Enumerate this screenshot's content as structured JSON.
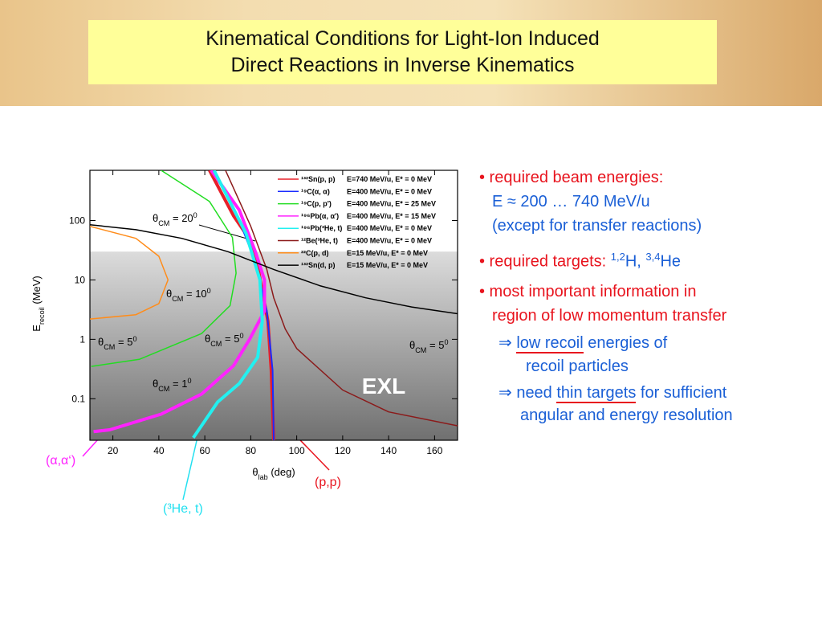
{
  "slide": {
    "title": [
      "Kinematical Conditions for Light-Ion Induced",
      "Direct Reactions in Inverse Kinematics"
    ],
    "notes": [
      [
        {
          "text": "• required beam energies:",
          "color": "#e8141e"
        }
      ],
      [
        {
          "text": "E ≈ 200 … 740 MeV/u",
          "color": "#1a5fd6"
        }
      ],
      [
        {
          "text": "(except for transfer reactions)",
          "color": "#1a5fd6"
        }
      ],
      [
        {
          "text": "• required targets: ",
          "color": "#e8141e"
        },
        {
          "text": "1,2",
          "color": "#1a5fd6",
          "sup": true
        },
        {
          "text": "H, ",
          "color": "#1a5fd6"
        },
        {
          "text": "3,4",
          "color": "#1a5fd6",
          "sup": true
        },
        {
          "text": "He",
          "color": "#1a5fd6"
        }
      ],
      [
        {
          "text": "• most important information in",
          "color": "#e8141e"
        }
      ],
      [
        {
          "text": "region of low momentum transfer",
          "color": "#e8141e"
        }
      ],
      [
        {
          "text": "⇒ ",
          "color": "#1a5fd6"
        },
        {
          "text": "low recoil",
          "color": "#1a5fd6",
          "underline": true
        },
        {
          "text": " energies of",
          "color": "#1a5fd6"
        }
      ],
      [
        {
          "text": "recoil particles",
          "color": "#1a5fd6"
        }
      ],
      [
        {
          "text": "⇒ need ",
          "color": "#1a5fd6"
        },
        {
          "text": "thin targets",
          "color": "#1a5fd6",
          "underline": true
        },
        {
          "text": " for sufficient",
          "color": "#1a5fd6"
        }
      ],
      [
        {
          "text": "angular and energy resolution",
          "color": "#1a5fd6"
        }
      ]
    ],
    "callouts": [
      {
        "text": "(α,α‘)",
        "color": "#ff22ff"
      },
      {
        "text": "(³He, t)",
        "color": "#22e0f0"
      },
      {
        "text": "(p,p)",
        "color": "#e8141e"
      }
    ]
  },
  "chart_data": {
    "type": "line",
    "log_y": true,
    "xlabel": {
      "text": "θ",
      "sub": "lab",
      "rest": " (deg)"
    },
    "ylabel": {
      "text": "E",
      "sub": "recoil",
      "rest": " (MeV)"
    },
    "xlim": [
      10,
      170
    ],
    "xticks": [
      20,
      40,
      60,
      80,
      100,
      120,
      140,
      160
    ],
    "ylim": [
      0.02,
      700
    ],
    "yticks": [
      0.1,
      1,
      10,
      100
    ],
    "region_label": "EXL",
    "region_from": 30,
    "annotations": [
      {
        "pre": "θ",
        "sub": "CM",
        "mid": " = 20",
        "sup": "0"
      },
      {
        "pre": "θ",
        "sub": "CM",
        "mid": " = 10",
        "sup": "0"
      },
      {
        "pre": "θ",
        "sub": "CM",
        "mid": " = 5",
        "sup": "0"
      },
      {
        "pre": "θ",
        "sub": "CM",
        "mid": " = 5",
        "sup": "0"
      },
      {
        "pre": "θ",
        "sub": "CM",
        "mid": " = 1",
        "sup": "0"
      },
      {
        "pre": "θ",
        "sub": "CM",
        "mid": " = 5",
        "sup": "0"
      }
    ],
    "series": [
      {
        "name": "¹³²Sn(p, p)",
        "conditions": "E=740 MeV/u, E* = 0 MeV",
        "color": "#e8202a",
        "line_width": 4,
        "x": [
          62,
          72.5,
          77.7,
          83,
          87.5,
          88.9,
          90
        ],
        "values": [
          700,
          120,
          61,
          17,
          2,
          0.3,
          0.02
        ]
      },
      {
        "name": "¹⁹C(α, α)",
        "conditions": "E=400 MeV/u, E* = 0 MeV",
        "color": "#1a2cff",
        "line_width": 2,
        "x": [
          64,
          75,
          82,
          87,
          89.5,
          90
        ],
        "values": [
          700,
          100,
          20,
          3,
          0.3,
          0.02
        ]
      },
      {
        "name": "¹⁹C(p, p')",
        "conditions": "E=400 MeV/u, E* = 25 MeV",
        "color": "#22dd22",
        "line_width": 1.5,
        "x": [
          41,
          62,
          72,
          73.6,
          71,
          58.6,
          31.5,
          10.6
        ],
        "values": [
          700,
          210,
          52,
          13,
          3.7,
          1.25,
          0.46,
          0.35
        ]
      },
      {
        "name": "¹⁹⁶Pb(α, α')",
        "conditions": "E=400 MeV/u, E* = 15 MeV",
        "color": "#ff22ff",
        "line_width": 4,
        "x": [
          62.8,
          75,
          82,
          86,
          86,
          79.5,
          72.5,
          58.6,
          41,
          18.6,
          11.6
        ],
        "values": [
          700,
          150,
          30,
          10,
          3,
          1,
          0.36,
          0.12,
          0.055,
          0.03,
          0.028
        ]
      },
      {
        "name": "¹⁹⁶Pb(³He, t)",
        "conditions": "E=400 MeV/u, E* = 0 MeV",
        "color": "#22f0f0",
        "line_width": 4,
        "x": [
          64,
          78,
          84,
          85,
          83,
          75,
          65.6,
          55
        ],
        "values": [
          700,
          60,
          10,
          2,
          0.5,
          0.18,
          0.088,
          0.022
        ]
      },
      {
        "name": "¹²Be(³He, t)",
        "conditions": "E=400 MeV/u, E* = 0 MeV",
        "color": "#8b1a1a",
        "line_width": 1.5,
        "x": [
          69,
          80,
          87,
          90,
          95,
          100,
          120,
          140,
          170
        ],
        "values": [
          700,
          80,
          15,
          5,
          1.5,
          0.7,
          0.14,
          0.06,
          0.035
        ]
      },
      {
        "name": "²²C(p, d)",
        "conditions": "E=15 MeV/u,   E* = 0 MeV",
        "color": "#ff8c1a",
        "line_width": 1.5,
        "x": [
          10,
          30,
          40,
          44,
          40,
          30,
          10
        ],
        "values": [
          80,
          50,
          25,
          10,
          4,
          2.6,
          2.2
        ]
      },
      {
        "name": "¹³²Sn(d, p)",
        "conditions": "E=15 MeV/u,   E* = 0 MeV",
        "color": "#000000",
        "line_width": 1.5,
        "x": [
          10,
          30,
          50,
          70,
          90,
          110,
          130,
          150,
          170
        ],
        "values": [
          85,
          70,
          50,
          30,
          15,
          8,
          5,
          3.5,
          2.7
        ]
      }
    ]
  }
}
